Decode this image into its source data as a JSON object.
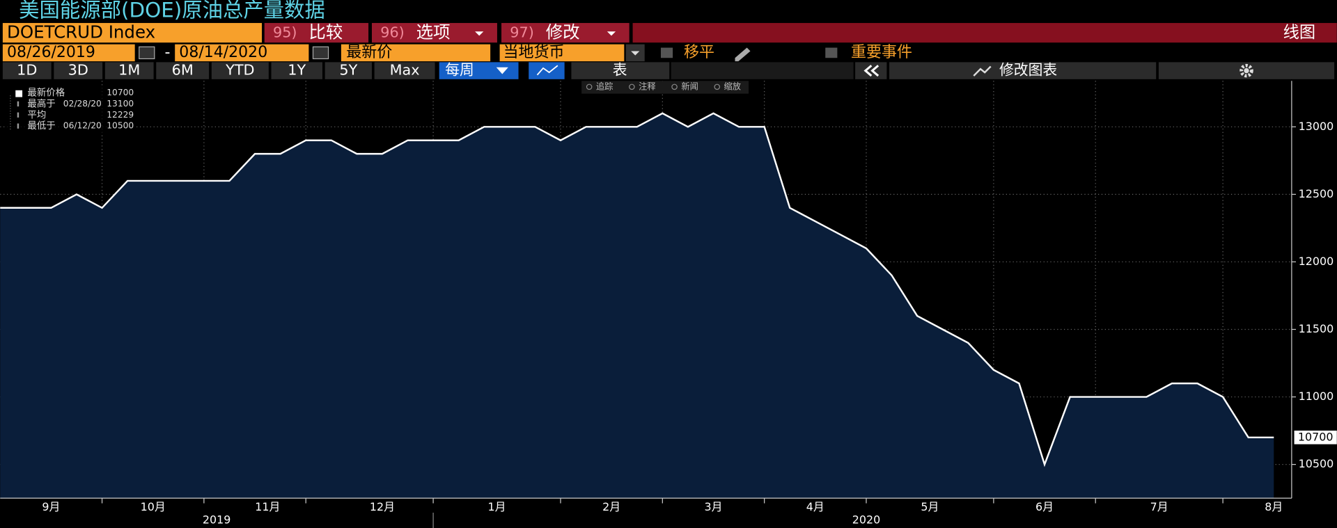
{
  "header": {
    "title": "美国能源部(DOE)原油总产量数据",
    "security": "DOETCRUD Index",
    "menus": [
      {
        "number": "95)",
        "label": "比较"
      },
      {
        "number": "96)",
        "label": "选项"
      },
      {
        "number": "97)",
        "label": "修改"
      }
    ],
    "chart_kind": "线图"
  },
  "controls": {
    "start_date": "08/26/2019",
    "separator": "-",
    "end_date": "08/14/2020",
    "field": "最新价",
    "currency": "当地货币",
    "checks": [
      "移平",
      "重要事件"
    ]
  },
  "periods": [
    "1D",
    "3D",
    "1M",
    "6M",
    "YTD",
    "1Y",
    "5Y",
    "Max"
  ],
  "frequency": "每周",
  "table_button": "表",
  "edit_chart": "修改图表",
  "chart_tools": [
    "追踪",
    "注释",
    "新闻",
    "缩放"
  ],
  "chart_data": {
    "type": "area",
    "values": [
      12400,
      12400,
      12400,
      12500,
      12400,
      12600,
      12600,
      12600,
      12600,
      12600,
      12800,
      12800,
      12900,
      12900,
      12800,
      12800,
      12900,
      12900,
      12900,
      13000,
      13000,
      13000,
      12900,
      13000,
      13000,
      13000,
      13100,
      13000,
      13100,
      13000,
      13000,
      12400,
      12300,
      12200,
      12100,
      11900,
      11600,
      11500,
      11400,
      11200,
      11100,
      10500,
      11000,
      11000,
      11000,
      11000,
      11100,
      11100,
      11000,
      10700,
      10700
    ],
    "color": "#ffffff",
    "fill": "#0a1e3a",
    "xlim": [
      0,
      50.7
    ],
    "ylim": [
      10250,
      13340
    ],
    "yticks": [
      10500,
      11000,
      11500,
      12000,
      12500,
      13000
    ],
    "xticks": [
      {
        "value": 2,
        "label": "9月"
      },
      {
        "value": 6,
        "label": "10月"
      },
      {
        "value": 10.5,
        "label": "11月"
      },
      {
        "value": 15,
        "label": "12月"
      },
      {
        "value": 19.5,
        "label": "1月"
      },
      {
        "value": 24,
        "label": "2月"
      },
      {
        "value": 28,
        "label": "3月"
      },
      {
        "value": 32,
        "label": "4月"
      },
      {
        "value": 36.5,
        "label": "5月"
      },
      {
        "value": 41,
        "label": "6月"
      },
      {
        "value": 45.5,
        "label": "7月"
      },
      {
        "value": 50,
        "label": "8月"
      }
    ],
    "xgrid": [
      4,
      8,
      12,
      17,
      22,
      26,
      30,
      34,
      39,
      43,
      48
    ],
    "years": [
      {
        "value": 8.5,
        "label": "2019"
      },
      {
        "value": 34,
        "label": "2020"
      }
    ],
    "year_divider": 17,
    "grid": true,
    "legend": [
      {
        "label": "最新价格",
        "value": 10700
      },
      {
        "label": "最高于",
        "date": "02/28/20",
        "value": 13100
      },
      {
        "label": "平均",
        "value": 12229
      },
      {
        "label": "最低于",
        "date": "06/12/20",
        "value": 10500
      }
    ]
  }
}
